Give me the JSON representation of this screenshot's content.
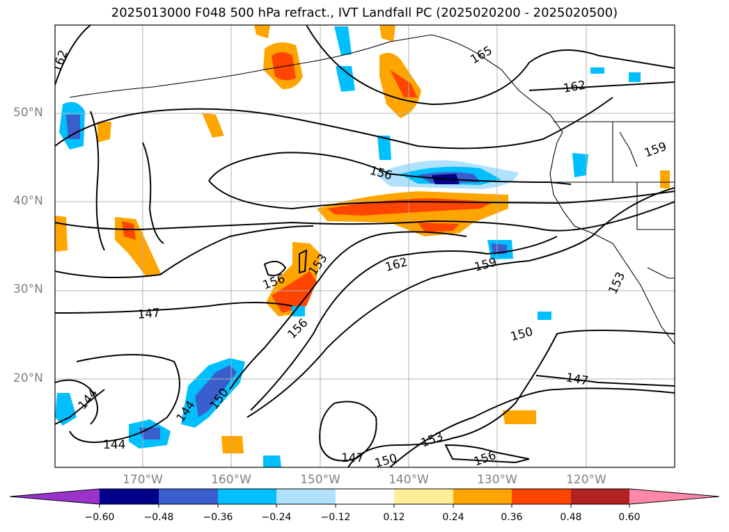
{
  "title": "2025013000 F048 500 hPa refract., IVT Landfall PC (2025020200 - 2025020500)",
  "map": {
    "lat_labels": [
      "50°N",
      "40°N",
      "30°N",
      "20°N"
    ],
    "lon_labels": [
      "170°W",
      "160°W",
      "150°W",
      "140°W",
      "130°W",
      "120°W"
    ],
    "contour_labels": [
      "162",
      "165",
      "162",
      "156",
      "159",
      "156",
      "153",
      "162",
      "159",
      "147",
      "156",
      "153",
      "150",
      "147",
      "144",
      "144",
      "150",
      "144",
      "147",
      "150",
      "153",
      "156"
    ]
  },
  "colorbar": {
    "ticks": [
      "−0.60",
      "−0.48",
      "−0.36",
      "−0.24",
      "−0.12",
      "0.12",
      "0.24",
      "0.36",
      "0.48",
      "0.60"
    ],
    "colors": [
      "#9933cc",
      "#00008b",
      "#3a5fcd",
      "#00bfff",
      "#b0e2ff",
      "#ffffff",
      "#ffee99",
      "#ffa500",
      "#ff4500",
      "#b22222",
      "#ff88aa"
    ]
  }
}
